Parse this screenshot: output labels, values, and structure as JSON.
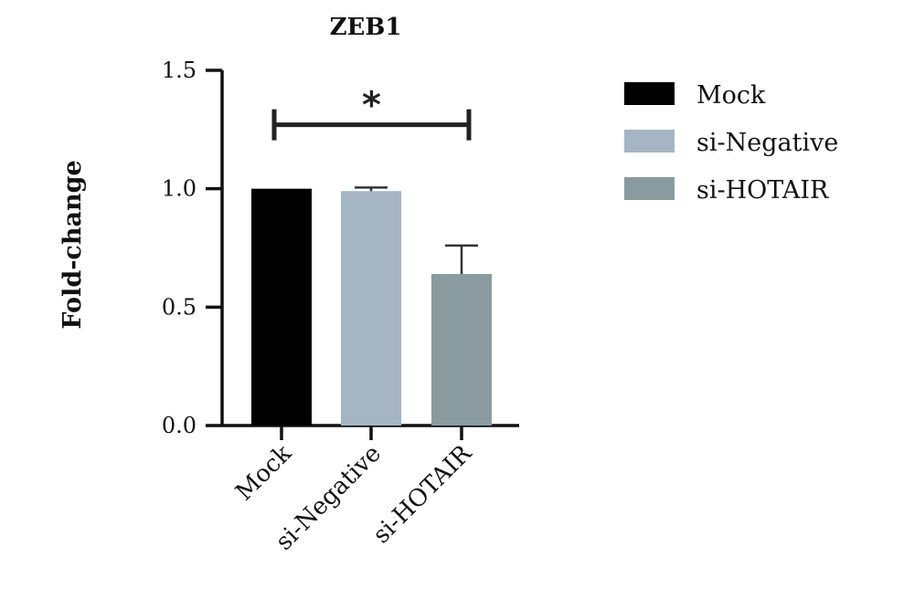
{
  "chart_data": {
    "type": "bar",
    "title": "ZEB1",
    "ylabel": "Fold-change",
    "xlabel": "",
    "ylim": [
      0,
      1.5
    ],
    "yticks": [
      "0.0",
      "0.5",
      "1.0",
      "1.5"
    ],
    "ytick_values": [
      0,
      0.5,
      1.0,
      1.5
    ],
    "categories": [
      "Mock",
      "si-Negative",
      "si-HOTAIR"
    ],
    "values": [
      1.0,
      0.99,
      0.64
    ],
    "errors": [
      0.0,
      0.015,
      0.12
    ],
    "colors": [
      "#000000",
      "#a5b5c4",
      "#8a9b9f"
    ],
    "legend": {
      "placement": "right",
      "entries": [
        "Mock",
        "si-Negative",
        "si-HOTAIR"
      ]
    },
    "significance": {
      "from": "Mock",
      "to": "si-HOTAIR",
      "label": "*",
      "y": 1.27
    },
    "grid": false
  }
}
